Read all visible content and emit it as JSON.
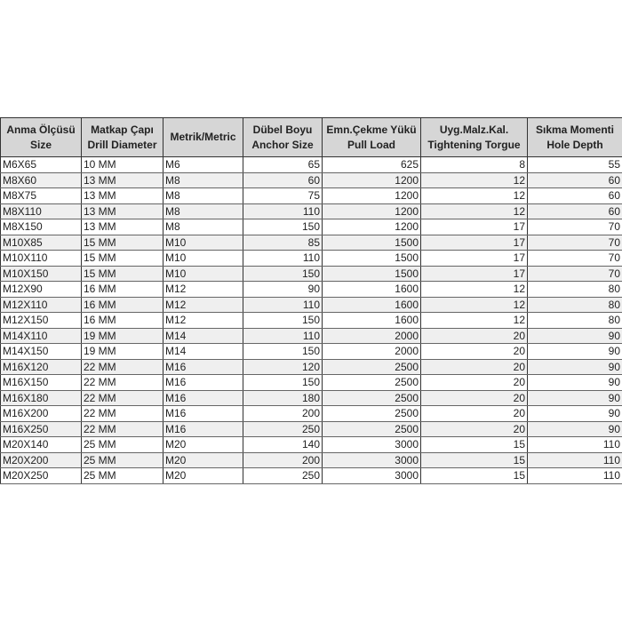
{
  "table": {
    "headers": [
      [
        "Anma Ölçüsü",
        "Size"
      ],
      [
        "Matkap Çapı",
        "Drill Diameter"
      ],
      [
        "Metrik/Metric",
        ""
      ],
      [
        "Dübel Boyu",
        "Anchor Size"
      ],
      [
        "Emn.Çekme Yükü",
        "Pull Load"
      ],
      [
        "Uyg.Malz.Kal.",
        "Tightening Torgue"
      ],
      [
        "Sıkma Momenti",
        "Hole Depth"
      ]
    ],
    "rows": [
      [
        "M6X65",
        "10 MM",
        "M6",
        "65",
        "625",
        "8",
        "55"
      ],
      [
        "M8X60",
        "13 MM",
        "M8",
        "60",
        "1200",
        "12",
        "60"
      ],
      [
        "M8X75",
        "13 MM",
        "M8",
        "75",
        "1200",
        "12",
        "60"
      ],
      [
        "M8X110",
        "13 MM",
        "M8",
        "110",
        "1200",
        "12",
        "60"
      ],
      [
        "M8X150",
        "13 MM",
        "M8",
        "150",
        "1200",
        "17",
        "70"
      ],
      [
        "M10X85",
        "15 MM",
        "M10",
        "85",
        "1500",
        "17",
        "70"
      ],
      [
        "M10X110",
        "15 MM",
        "M10",
        "110",
        "1500",
        "17",
        "70"
      ],
      [
        "M10X150",
        "15 MM",
        "M10",
        "150",
        "1500",
        "17",
        "70"
      ],
      [
        "M12X90",
        "16 MM",
        "M12",
        "90",
        "1600",
        "12",
        "80"
      ],
      [
        "M12X110",
        "16 MM",
        "M12",
        "110",
        "1600",
        "12",
        "80"
      ],
      [
        "M12X150",
        "16 MM",
        "M12",
        "150",
        "1600",
        "12",
        "80"
      ],
      [
        "M14X110",
        "19 MM",
        "M14",
        "110",
        "2000",
        "20",
        "90"
      ],
      [
        "M14X150",
        "19 MM",
        "M14",
        "150",
        "2000",
        "20",
        "90"
      ],
      [
        "M16X120",
        "22 MM",
        "M16",
        "120",
        "2500",
        "20",
        "90"
      ],
      [
        "M16X150",
        "22 MM",
        "M16",
        "150",
        "2500",
        "20",
        "90"
      ],
      [
        "M16X180",
        "22 MM",
        "M16",
        "180",
        "2500",
        "20",
        "90"
      ],
      [
        "M16X200",
        "22 MM",
        "M16",
        "200",
        "2500",
        "20",
        "90"
      ],
      [
        "M16X250",
        "22 MM",
        "M16",
        "250",
        "2500",
        "20",
        "90"
      ],
      [
        "M20X140",
        "25 MM",
        "M20",
        "140",
        "3000",
        "15",
        "110"
      ],
      [
        "M20X200",
        "25 MM",
        "M20",
        "200",
        "3000",
        "15",
        "110"
      ],
      [
        "M20X250",
        "25 MM",
        "M20",
        "250",
        "3000",
        "15",
        "110"
      ]
    ]
  }
}
